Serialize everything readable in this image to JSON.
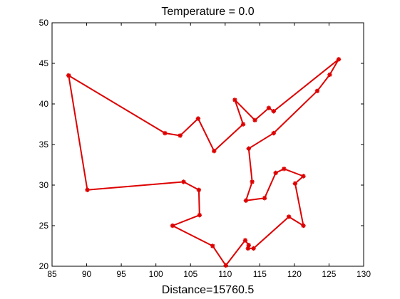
{
  "chart_data": {
    "type": "line",
    "title": "Temperature = 0.0",
    "xlabel": "Distance=15760.5",
    "ylabel": "",
    "xlim": [
      85,
      130
    ],
    "ylim": [
      20,
      50
    ],
    "xticks": [
      85,
      90,
      95,
      100,
      105,
      110,
      115,
      120,
      125,
      130
    ],
    "yticks": [
      20,
      25,
      30,
      35,
      40,
      45,
      50
    ],
    "grid": false,
    "legend": "none",
    "series": [
      {
        "color": "#dd0000",
        "marker": "star",
        "closed": true,
        "x": [
          87.4,
          101.3,
          103.5,
          106.1,
          108.4,
          112.6,
          111.4,
          114.3,
          116.3,
          117.0,
          126.4,
          125.1,
          123.3,
          117.0,
          113.4,
          113.9,
          113.0,
          115.7,
          117.3,
          118.5,
          121.3,
          120.1,
          121.3,
          119.2,
          114.1,
          113.3,
          113.4,
          112.9,
          110.1,
          108.2,
          102.4,
          106.3,
          106.2,
          104.0,
          90.1,
          87.4
        ],
        "y": [
          43.5,
          36.4,
          36.1,
          38.2,
          34.2,
          37.5,
          40.5,
          38.0,
          39.5,
          39.1,
          45.5,
          43.6,
          41.6,
          36.4,
          34.5,
          30.4,
          28.1,
          28.4,
          31.5,
          32.0,
          31.1,
          30.2,
          25.0,
          26.1,
          22.2,
          22.2,
          22.6,
          23.2,
          20.1,
          22.5,
          25.0,
          26.3,
          29.4,
          30.4,
          29.4,
          43.5
        ]
      }
    ]
  }
}
